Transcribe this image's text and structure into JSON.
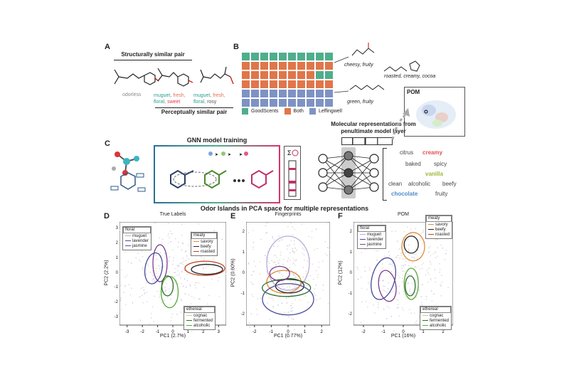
{
  "panelA": {
    "label": "A",
    "structural_title": "Structurally similar pair",
    "perceptual_title": "Perceptually similar pair",
    "odorless": "odorless",
    "mol2_desc": [
      {
        "text": "muguet, ",
        "color": "#2a9d8f"
      },
      {
        "text": "fresh,",
        "color": "#e76f51"
      },
      {
        "text": "floral, ",
        "color": "#2a9d8f"
      },
      {
        "text": "sweet",
        "color": "#e63946"
      }
    ],
    "mol3_desc": [
      {
        "text": "muguet, ",
        "color": "#2a9d8f"
      },
      {
        "text": "fresh,",
        "color": "#e76f51"
      },
      {
        "text": "floral, ",
        "color": "#2a9d8f"
      },
      {
        "text": "rosy",
        "color": "#555555"
      }
    ]
  },
  "panelB": {
    "label": "B",
    "grid_rows": [
      [
        "g",
        "g",
        "g",
        "g",
        "g",
        "g",
        "g",
        "g",
        "g",
        "g"
      ],
      [
        "o",
        "o",
        "o",
        "o",
        "o",
        "o",
        "o",
        "o",
        "o",
        "o"
      ],
      [
        "o",
        "o",
        "o",
        "o",
        "o",
        "o",
        "o",
        "o",
        "g",
        "g"
      ],
      [
        "o",
        "o",
        "o",
        "o",
        "o",
        "o",
        "o",
        "o",
        "o",
        "o"
      ],
      [
        "b",
        "b",
        "b",
        "b",
        "b",
        "b",
        "b",
        "b",
        "b",
        "b"
      ],
      [
        "b",
        "b",
        "b",
        "b",
        "b",
        "b",
        "b",
        "b",
        "b",
        "b"
      ]
    ],
    "colors": {
      "g": "#4fae8c",
      "o": "#e0764a",
      "b": "#7e93c4"
    },
    "legend": [
      "GoodScents",
      "Both",
      "Leffingwell"
    ],
    "examples": [
      "cheesy, fruity",
      "roasted, creamy, cocoa",
      "green, fruity"
    ]
  },
  "panelC": {
    "label": "C",
    "gnn_title": "GNN model training",
    "repr_title_1": "Molecular representations from",
    "repr_title_2": "penultimate model layer",
    "pom_label": "POM",
    "odor_words": [
      {
        "text": "citrus",
        "color": "#444444"
      },
      {
        "text": "creamy",
        "color": "#e05050"
      },
      {
        "text": "baked",
        "color": "#444444"
      },
      {
        "text": "spicy",
        "color": "#444444"
      },
      {
        "text": "vanilla",
        "color": "#9ab83a"
      },
      {
        "text": "clean",
        "color": "#444444"
      },
      {
        "text": "alcoholic",
        "color": "#444444"
      },
      {
        "text": "beefy",
        "color": "#444444"
      },
      {
        "text": "chocolate",
        "color": "#4a8cc8"
      },
      {
        "text": "fruity",
        "color": "#444444"
      }
    ]
  },
  "section_title": "Odor Islands in PCA space for multiple representations",
  "plots": [
    {
      "label": "D",
      "title": "True Labels",
      "xlabel": "PC1 (2.7%)",
      "ylabel": "PC2 (2.2%)",
      "xticks": [
        "-3",
        "-2",
        "-1",
        "0",
        "1",
        "2",
        "3"
      ],
      "yticks": [
        "3",
        "2",
        "1",
        "0",
        "-1",
        "-2",
        "-3"
      ]
    },
    {
      "label": "E",
      "title": "Fingerprints",
      "xlabel": "PC1 (0.77%)",
      "ylabel": "PC2 (0.60%)",
      "xticks": [
        "-2",
        "-1",
        "0",
        "1",
        "2"
      ],
      "yticks": [
        "2",
        "1",
        "0",
        "-1",
        "-2"
      ]
    },
    {
      "label": "F",
      "title": "POM",
      "xlabel": "PC1 (16%)",
      "ylabel": "PC2 (12%)",
      "xticks": [
        "-2",
        "-1",
        "0",
        "1",
        "2"
      ],
      "yticks": [
        "2",
        "1",
        "0",
        "-1",
        "-2"
      ]
    }
  ],
  "legends": {
    "floral": {
      "title": "floral",
      "items": [
        "muguet",
        "lavender",
        "jasmine"
      ],
      "colors": [
        "#b8a9d9",
        "#4a4a9a",
        "#7a3d8f"
      ]
    },
    "meaty": {
      "title": "meaty",
      "items": [
        "savory",
        "beefy",
        "roasted"
      ],
      "colors": [
        "#e08a3a",
        "#222222",
        "#c04020"
      ]
    },
    "ethereal": {
      "title": "ethereal",
      "items": [
        "cognac",
        "fermented",
        "alcoholic"
      ],
      "colors": [
        "#b6d98a",
        "#2d6e2d",
        "#5aa83a"
      ]
    }
  }
}
